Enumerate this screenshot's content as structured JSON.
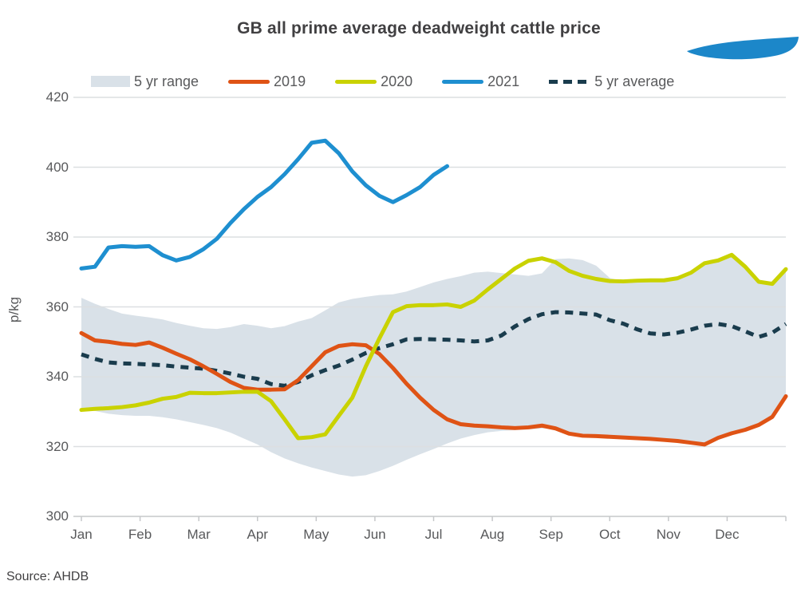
{
  "title": "GB all prime average deadweight cattle price",
  "logo": {
    "text": "AHDB"
  },
  "source": "Source: AHDB",
  "colors": {
    "band": "#d9e1e8",
    "avg": "#1a3c4d",
    "y2019": "#df5315",
    "y2020": "#c9d200",
    "y2021": "#1e8fd0",
    "grid": "#dcdfe1",
    "axis": "#c6c8ca",
    "text": "#58595b",
    "title_text": "#414042",
    "logo_blue": "#1c87c9"
  },
  "legend": {
    "items": [
      {
        "id": "range",
        "label": "5 yr range",
        "swatch": "box"
      },
      {
        "id": "y2019",
        "label": "2019",
        "swatch": "line"
      },
      {
        "id": "y2020",
        "label": "2020",
        "swatch": "line"
      },
      {
        "id": "y2021",
        "label": "2021",
        "swatch": "line"
      },
      {
        "id": "avg",
        "label": "5 yr average",
        "swatch": "dashed-line"
      }
    ]
  },
  "chart_data": {
    "type": "line",
    "title": "GB all prime average deadweight cattle price",
    "xlabel": "",
    "ylabel": "p/kg",
    "ylim": [
      300,
      430
    ],
    "yticks": [
      300,
      320,
      340,
      360,
      380,
      400,
      420
    ],
    "x_months": [
      "Jan",
      "Feb",
      "Mar",
      "Apr",
      "May",
      "Jun",
      "Jul",
      "Aug",
      "Sep",
      "Oct",
      "Nov",
      "Dec"
    ],
    "x_unit": "weekly points, Jan-Dec",
    "grid": "horizontal",
    "legend_position": "top",
    "series": [
      {
        "name": "5 yr range (upper)",
        "role": "band_upper",
        "color_key": "band",
        "values": [
          362.6,
          360.9,
          359.4,
          358.1,
          357.5,
          357.0,
          356.4,
          355.4,
          354.6,
          353.9,
          353.7,
          354.2,
          355.1,
          354.6,
          353.9,
          354.5,
          355.8,
          356.8,
          359.0,
          361.3,
          362.3,
          362.9,
          363.4,
          363.6,
          364.4,
          365.7,
          367.0,
          368.0,
          368.8,
          369.8,
          370.1,
          369.7,
          369.3,
          368.9,
          369.6,
          373.7,
          373.9,
          373.4,
          371.8,
          368.3,
          367.3,
          367.5,
          367.6,
          367.6,
          368.2,
          369.8,
          372.5,
          373.3,
          374.9,
          371.5,
          367.2,
          366.6,
          370.8
        ]
      },
      {
        "name": "5 yr range (lower)",
        "role": "band_lower",
        "color_key": "band",
        "values": [
          331.0,
          330.2,
          329.4,
          329.0,
          328.8,
          328.8,
          328.4,
          327.8,
          327.0,
          326.2,
          325.3,
          324.0,
          322.3,
          320.6,
          318.4,
          316.6,
          315.2,
          314.0,
          313.0,
          312.0,
          311.4,
          311.8,
          313.0,
          314.5,
          316.2,
          317.8,
          319.3,
          320.9,
          322.3,
          323.3,
          324.1,
          324.5,
          324.7,
          324.9,
          325.2,
          325.2,
          323.7,
          323.1,
          323.0,
          322.8,
          322.6,
          322.4,
          322.2,
          321.9,
          321.6,
          321.1,
          320.4,
          322.5,
          323.8,
          324.8,
          326.2,
          328.5,
          334.4
        ]
      },
      {
        "name": "5 yr average",
        "role": "line",
        "dash": true,
        "color_key": "avg",
        "values": [
          346.4,
          345.1,
          344.1,
          343.8,
          343.7,
          343.5,
          343.3,
          342.9,
          342.6,
          342.3,
          341.7,
          340.9,
          340.0,
          339.4,
          337.9,
          337.4,
          338.5,
          340.4,
          341.9,
          343.2,
          344.9,
          346.8,
          348.2,
          349.3,
          350.7,
          350.8,
          350.7,
          350.6,
          350.4,
          350.1,
          350.4,
          351.8,
          354.4,
          356.5,
          357.9,
          358.5,
          358.4,
          358.1,
          357.8,
          356.2,
          355.2,
          353.6,
          352.4,
          352.1,
          352.6,
          353.5,
          354.6,
          355.1,
          354.5,
          353.0,
          351.4,
          352.6,
          355.1
        ]
      },
      {
        "name": "2019",
        "role": "line",
        "color_key": "y2019",
        "values": [
          352.5,
          350.4,
          350.0,
          349.4,
          349.1,
          349.8,
          348.3,
          346.6,
          345.0,
          343.0,
          340.8,
          338.5,
          336.8,
          336.3,
          336.3,
          336.4,
          339.0,
          343.0,
          347.0,
          348.8,
          349.3,
          349.0,
          346.5,
          342.5,
          338.0,
          334.0,
          330.5,
          327.8,
          326.4,
          326.0,
          325.8,
          325.5,
          325.3,
          325.5,
          326.0,
          325.2,
          323.7,
          323.1,
          323.0,
          322.8,
          322.6,
          322.4,
          322.2,
          321.9,
          321.6,
          321.1,
          320.6,
          322.5,
          323.8,
          324.8,
          326.2,
          328.5,
          334.4
        ]
      },
      {
        "name": "2020",
        "role": "line",
        "color_key": "y2020",
        "values": [
          330.5,
          330.8,
          331.0,
          331.3,
          331.8,
          332.6,
          333.7,
          334.2,
          335.4,
          335.3,
          335.3,
          335.5,
          335.7,
          335.7,
          333.0,
          327.8,
          322.4,
          322.7,
          323.5,
          328.8,
          334.0,
          343.0,
          351.0,
          358.5,
          360.2,
          360.5,
          360.5,
          360.7,
          360.0,
          361.8,
          365.0,
          368.0,
          371.0,
          373.2,
          373.9,
          372.8,
          370.3,
          368.9,
          368.0,
          367.4,
          367.3,
          367.5,
          367.6,
          367.6,
          368.2,
          369.8,
          372.5,
          373.3,
          374.9,
          371.5,
          367.2,
          366.6,
          370.8
        ]
      },
      {
        "name": "2021",
        "role": "line",
        "color_key": "y2021",
        "values": [
          371.0,
          371.5,
          377.0,
          377.4,
          377.2,
          377.4,
          374.8,
          373.3,
          374.3,
          376.5,
          379.5,
          384.0,
          388.0,
          391.5,
          394.3,
          398.0,
          402.3,
          407.0,
          407.6,
          404.0,
          398.8,
          394.8,
          391.8,
          390.0,
          392.0,
          394.3,
          397.8,
          400.3
        ]
      }
    ]
  }
}
